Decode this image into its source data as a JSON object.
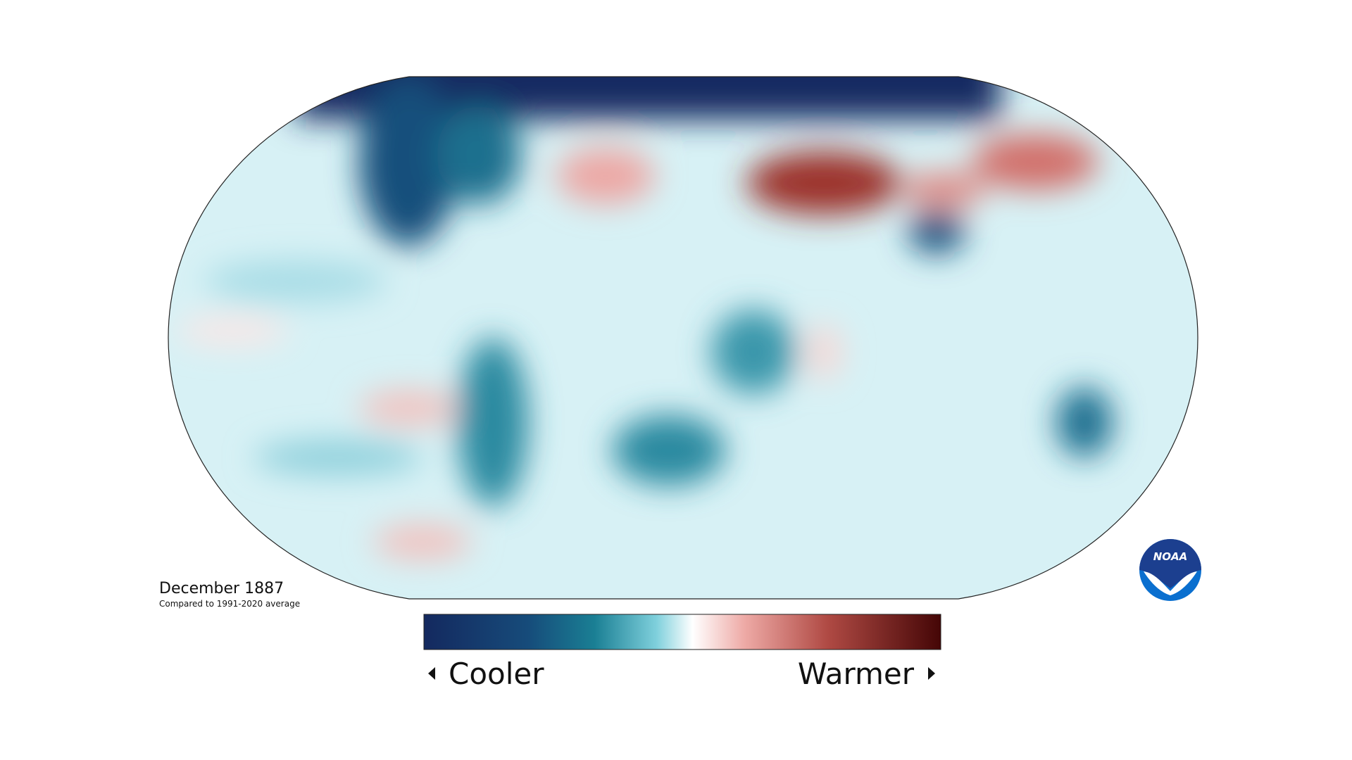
{
  "map": {
    "title": "December 1887",
    "subtitle": "Compared to 1991-2020 average"
  },
  "legend": {
    "low": "Cooler",
    "high": "Warmer"
  },
  "logo": {
    "text": "NOAA"
  }
}
